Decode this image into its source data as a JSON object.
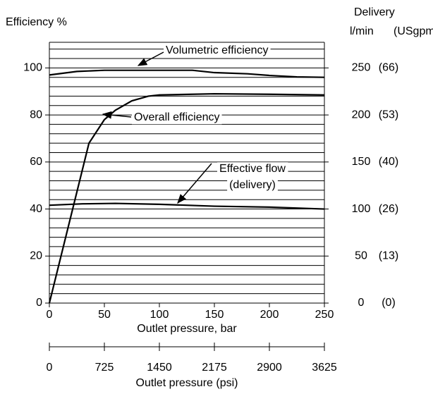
{
  "chart_data": {
    "type": "line",
    "y_label": "Efficiency %",
    "y2_label_top": "Delivery",
    "y2_label_unit": "l/min",
    "y2_label_alt_unit": "(USgpm)",
    "x_label": "Outlet pressure, bar",
    "x2_label": "Outlet pressure (psi)",
    "xlim": [
      0,
      250
    ],
    "xticks": [
      0,
      50,
      100,
      150,
      200,
      250
    ],
    "ylim": [
      0,
      110
    ],
    "yticks": [
      0,
      20,
      40,
      60,
      80,
      100
    ],
    "minor_yticks": [
      0,
      4,
      8,
      12,
      16,
      20,
      24,
      28,
      32,
      36,
      40,
      44,
      48,
      52,
      56,
      60,
      64,
      68,
      72,
      76,
      80,
      84,
      88,
      92,
      96,
      100,
      104,
      108
    ],
    "y2lim": [
      0,
      275
    ],
    "y2ticks": [
      0,
      50,
      100,
      150,
      200,
      250
    ],
    "y2_alt_labels": [
      "(0)",
      "(13)",
      "(26)",
      "(40)",
      "(53)",
      "(66)"
    ],
    "x2lim": [
      0,
      3625
    ],
    "x2ticks": [
      0,
      725,
      1450,
      2175,
      2900,
      3625
    ],
    "grid": true,
    "color": "#000000",
    "series": [
      {
        "name": "Volumetric efficiency",
        "x": [
          0,
          25,
          50,
          100,
          130,
          150,
          180,
          200,
          225,
          250
        ],
        "values": [
          97,
          98.5,
          99,
          99,
          99,
          98,
          97.5,
          96.8,
          96.2,
          96
        ]
      },
      {
        "name": "Overall efficiency",
        "x": [
          0,
          36,
          50,
          60,
          75,
          90,
          100,
          150,
          200,
          250
        ],
        "values": [
          0,
          68,
          78,
          82,
          86,
          88,
          88.5,
          89,
          88.8,
          88.5
        ]
      },
      {
        "name": "Effective flow",
        "axis": "y2",
        "x": [
          0,
          30,
          60,
          100,
          150,
          200,
          250
        ],
        "values": [
          104,
          105.5,
          106,
          105,
          103,
          102,
          100
        ]
      }
    ],
    "annotations": [
      {
        "text": "Volumetric efficiency"
      },
      {
        "text": "Overall efficiency"
      },
      {
        "text": "Effective flow"
      },
      {
        "text": "(delivery)"
      }
    ]
  }
}
